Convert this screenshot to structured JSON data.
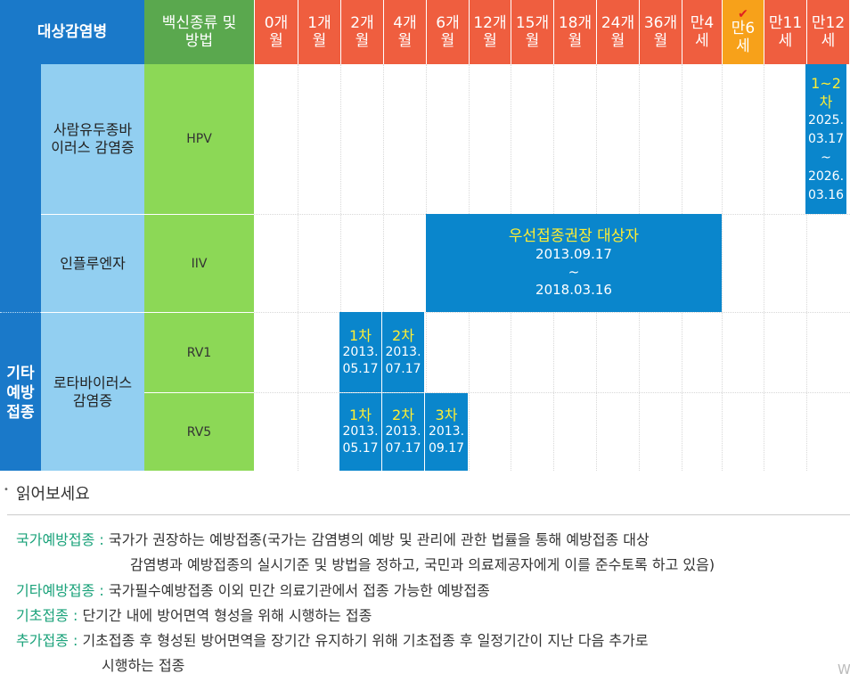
{
  "header": {
    "disease_col": "대상감염병",
    "vaccine_col": [
      "백신종류 및",
      "방법"
    ],
    "ages": [
      [
        "0개",
        "월"
      ],
      [
        "1개",
        "월"
      ],
      [
        "2개",
        "월"
      ],
      [
        "4개",
        "월"
      ],
      [
        "6개",
        "월"
      ],
      [
        "12개",
        "월"
      ],
      [
        "15개",
        "월"
      ],
      [
        "18개",
        "월"
      ],
      [
        "24개",
        "월"
      ],
      [
        "36개",
        "월"
      ],
      [
        "만4",
        "세"
      ],
      [
        "만6",
        "세"
      ],
      [
        "만11",
        "세"
      ],
      [
        "만12",
        "세"
      ]
    ],
    "highlight_mark": "✔"
  },
  "category": {
    "label": [
      "기타",
      "예방",
      "접종"
    ]
  },
  "rows": {
    "hpv": {
      "disease": [
        "사람유두종바",
        "이러스 감염증"
      ],
      "vaccine": "HPV"
    },
    "iiv": {
      "disease": [
        "인플루엔자"
      ],
      "vaccine": "IIV"
    },
    "rota": {
      "disease": [
        "로타바이러스",
        "감염증"
      ],
      "rv1": "RV1",
      "rv5": "RV5"
    }
  },
  "bars": {
    "hpv": {
      "head": [
        "1~2",
        "차"
      ],
      "lines": [
        "2025.",
        "03.17",
        "~",
        "2026.",
        "03.16"
      ]
    },
    "iiv": {
      "head": [
        "우선접종권장 대상자"
      ],
      "lines": [
        "2013.09.17",
        "~",
        "2018.03.16"
      ]
    },
    "rv1_1": {
      "head": [
        "1차"
      ],
      "lines": [
        "2013.",
        "05.17"
      ]
    },
    "rv1_2": {
      "head": [
        "2차"
      ],
      "lines": [
        "2013.",
        "07.17"
      ]
    },
    "rv5_1": {
      "head": [
        "1차"
      ],
      "lines": [
        "2013.",
        "05.17"
      ]
    },
    "rv5_2": {
      "head": [
        "2차"
      ],
      "lines": [
        "2013.",
        "07.17"
      ]
    },
    "rv5_3": {
      "head": [
        "3차"
      ],
      "lines": [
        "2013.",
        "09.17"
      ]
    }
  },
  "notes": {
    "title": "읽어보세요",
    "items": [
      {
        "term": "국가예방접종",
        "sep": " : ",
        "lines": [
          "국가가 권장하는 예방접종(국가는 감염병의 예방 및 관리에 관한 법률을 통해 예방접종 대상",
          "감염병과 예방접종의 실시기준 및 방법을 정하고, 국민과 의료제공자에게 이를 준수토록 하고 있음)"
        ]
      },
      {
        "term": "기타예방접종",
        "sep": " : ",
        "lines": [
          "국가필수예방접종 이외 민간 의료기관에서 접종 가능한 예방접종"
        ]
      },
      {
        "term": "기초접종",
        "sep": " : ",
        "lines": [
          "단기간 내에 방어면역 형성을 위해 시행하는 접종"
        ]
      },
      {
        "term": "추가접종",
        "sep": " : ",
        "lines": [
          "기초접종 후 형성된 방어면역을 장기간 유지하기 위해 기초접종 후 일정기간이 지난 다음 추가로",
          "시행하는 접종"
        ]
      }
    ],
    "corner_text": "W"
  },
  "colors": {
    "header_blue": "#1a79c9",
    "header_green": "#5aa84e",
    "header_orange": "#ef5e3f",
    "highlight_orange": "#f7a11a",
    "disease_lightblue": "#92cff1",
    "vaccine_green": "#8cd856",
    "bar_blue": "#0a86cc",
    "bar_head_yellow": "#ffee33",
    "term_teal": "#1aa27a"
  }
}
